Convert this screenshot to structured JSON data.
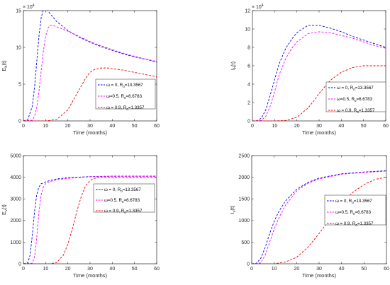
{
  "colors": {
    "axis": "#262626",
    "blue": "#0000ee",
    "magenta": "#ff00ff",
    "red": "#ee0000"
  },
  "legend_series": [
    {
      "omega": "ω = 0, R",
      "sub": "0",
      "value": "=13.3567",
      "color": "#0000ee"
    },
    {
      "omega": "ω=0.5, R",
      "sub": "0",
      "value": "=6.6783",
      "color": "#ff00ff"
    },
    {
      "omega": "ω = 0.9, R",
      "sub": "0",
      "value": "=1.3357",
      "color": "#ee0000"
    }
  ],
  "chart_data": [
    {
      "type": "line",
      "ylabel_main": "E",
      "ylabel_sub": "h",
      "ylabel_suffix": "(t)",
      "xlabel": "Time (months)",
      "exponent_label": "× 10",
      "exponent_power": "4",
      "xlim": [
        0,
        60
      ],
      "ylim": [
        0,
        15
      ],
      "xticks": [
        "0",
        "10",
        "20",
        "30",
        "40",
        "50",
        "60"
      ],
      "yticks": [
        "0",
        "5",
        "10",
        "15"
      ],
      "grid": false,
      "legend": "bottom-right",
      "series": [
        {
          "color": "#0000ee",
          "x": [
            0,
            2,
            4,
            5,
            6,
            7,
            8,
            9,
            10,
            12,
            15,
            20,
            25,
            30,
            35,
            40,
            45,
            50,
            55,
            60
          ],
          "y": [
            0,
            0.2,
            2,
            4.5,
            8,
            11.5,
            14,
            15.2,
            15.3,
            14.6,
            13.5,
            12.3,
            11.4,
            10.7,
            10.1,
            9.6,
            9.1,
            8.7,
            8.4,
            8.0
          ]
        },
        {
          "color": "#ff00ff",
          "x": [
            0,
            4,
            5,
            6,
            7,
            8,
            9,
            10,
            11,
            12,
            13,
            15,
            20,
            25,
            30,
            35,
            40,
            45,
            50,
            55,
            60
          ],
          "y": [
            0,
            0.1,
            0.6,
            1.8,
            4,
            6.8,
            9.5,
            11.5,
            12.6,
            13.0,
            13.0,
            12.8,
            12.2,
            11.5,
            10.8,
            10.2,
            9.7,
            9.2,
            8.8,
            8.4,
            8.1
          ]
        },
        {
          "color": "#ee0000",
          "x": [
            0,
            10,
            15,
            20,
            25,
            28,
            30,
            32,
            35,
            38,
            40,
            45,
            50,
            55,
            60
          ],
          "y": [
            0,
            0,
            0.2,
            1.5,
            4.2,
            5.8,
            6.6,
            7.0,
            7.2,
            7.2,
            7.1,
            6.9,
            6.6,
            6.3,
            6.0
          ]
        }
      ]
    },
    {
      "type": "line",
      "ylabel_main": "I",
      "ylabel_sub": "h",
      "ylabel_suffix": "(t)",
      "xlabel": "Time (months)",
      "exponent_label": "× 10",
      "exponent_power": "4",
      "xlim": [
        0,
        60
      ],
      "ylim": [
        0,
        12
      ],
      "xticks": [
        "0",
        "10",
        "20",
        "30",
        "40",
        "50",
        "60"
      ],
      "yticks": [
        "0",
        "2",
        "4",
        "6",
        "8",
        "10",
        "12"
      ],
      "grid": false,
      "legend": "bottom-right",
      "series": [
        {
          "color": "#0000ee",
          "x": [
            0,
            2,
            4,
            6,
            8,
            10,
            12,
            15,
            18,
            20,
            25,
            30,
            35,
            40,
            45,
            50,
            55,
            60
          ],
          "y": [
            0,
            0.02,
            0.3,
            1.2,
            2.8,
            4.5,
            6.2,
            7.9,
            9.0,
            9.6,
            10.4,
            10.4,
            10.1,
            9.7,
            9.2,
            8.8,
            8.4,
            8.0
          ]
        },
        {
          "color": "#ff00ff",
          "x": [
            0,
            4,
            6,
            8,
            10,
            12,
            15,
            18,
            20,
            25,
            30,
            35,
            40,
            45,
            50,
            55,
            60
          ],
          "y": [
            0,
            0.05,
            0.5,
            1.6,
            3.2,
            5.0,
            6.8,
            8.0,
            8.6,
            9.5,
            9.7,
            9.6,
            9.3,
            9.0,
            8.6,
            8.2,
            7.9
          ]
        },
        {
          "color": "#ee0000",
          "x": [
            0,
            10,
            15,
            20,
            25,
            28,
            30,
            35,
            40,
            45,
            50,
            55,
            60
          ],
          "y": [
            0,
            0,
            0.05,
            0.4,
            1.4,
            2.3,
            3.0,
            4.4,
            5.3,
            5.8,
            6.0,
            6.0,
            6.0
          ]
        }
      ]
    },
    {
      "type": "line",
      "ylabel_main": "E",
      "ylabel_sub": "v",
      "ylabel_suffix": "(t)",
      "xlabel": "Time (months)",
      "exponent_label": "",
      "exponent_power": "",
      "xlim": [
        0,
        60
      ],
      "ylim": [
        0,
        5000
      ],
      "xticks": [
        "0",
        "10",
        "20",
        "30",
        "40",
        "50",
        "60"
      ],
      "yticks": [
        "0",
        "1000",
        "2000",
        "3000",
        "4000",
        "5000"
      ],
      "grid": false,
      "legend": "right",
      "series": [
        {
          "color": "#0000ee",
          "x": [
            0,
            2,
            3,
            4,
            5,
            6,
            7,
            8,
            10,
            12,
            15,
            20,
            30,
            40,
            50,
            60
          ],
          "y": [
            0,
            50,
            400,
            1300,
            2400,
            3200,
            3550,
            3700,
            3780,
            3850,
            3920,
            3980,
            4030,
            4050,
            4050,
            4050
          ]
        },
        {
          "color": "#ff00ff",
          "x": [
            0,
            4,
            5,
            6,
            7,
            8,
            9,
            10,
            12,
            15,
            20,
            30,
            40,
            50,
            60
          ],
          "y": [
            0,
            30,
            300,
            1200,
            2400,
            3200,
            3550,
            3700,
            3800,
            3880,
            3950,
            4020,
            4040,
            4040,
            4040
          ]
        },
        {
          "color": "#ee0000",
          "x": [
            0,
            12,
            15,
            18,
            20,
            22,
            24,
            26,
            28,
            30,
            32,
            35,
            40,
            50,
            60
          ],
          "y": [
            0,
            0,
            60,
            400,
            900,
            1600,
            2400,
            3100,
            3600,
            3850,
            3950,
            4000,
            4000,
            3990,
            3990
          ]
        }
      ]
    },
    {
      "type": "line",
      "ylabel_main": "I",
      "ylabel_sub": "v",
      "ylabel_suffix": "(t)",
      "xlabel": "Time (months)",
      "exponent_label": "",
      "exponent_power": "",
      "xlim": [
        0,
        60
      ],
      "ylim": [
        0,
        2500
      ],
      "xticks": [
        "0",
        "10",
        "20",
        "30",
        "40",
        "50",
        "60"
      ],
      "yticks": [
        "0",
        "500",
        "1000",
        "1500",
        "2000",
        "2500"
      ],
      "grid": false,
      "legend": "right",
      "series": [
        {
          "color": "#0000ee",
          "x": [
            0,
            2,
            4,
            6,
            8,
            10,
            12,
            15,
            20,
            25,
            30,
            40,
            50,
            60
          ],
          "y": [
            0,
            10,
            120,
            380,
            700,
            980,
            1200,
            1450,
            1720,
            1880,
            1980,
            2080,
            2120,
            2150
          ]
        },
        {
          "color": "#ff00ff",
          "x": [
            0,
            4,
            6,
            8,
            10,
            12,
            15,
            20,
            25,
            30,
            40,
            50,
            60
          ],
          "y": [
            0,
            20,
            200,
            500,
            800,
            1050,
            1350,
            1680,
            1860,
            1960,
            2070,
            2110,
            2140
          ]
        },
        {
          "color": "#ee0000",
          "x": [
            0,
            10,
            15,
            20,
            25,
            30,
            35,
            40,
            45,
            50,
            55,
            60
          ],
          "y": [
            0,
            0,
            40,
            150,
            380,
            700,
            1050,
            1380,
            1650,
            1830,
            1950,
            2000
          ]
        }
      ]
    }
  ]
}
